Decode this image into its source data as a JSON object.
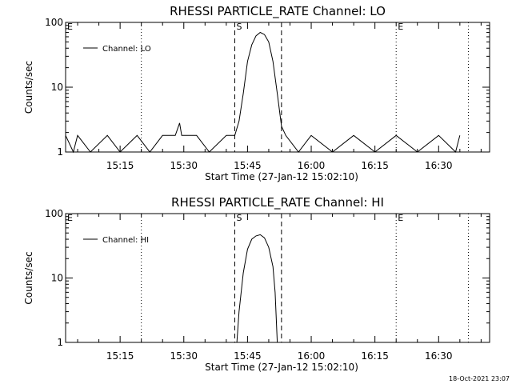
{
  "chart_data": [
    {
      "type": "line",
      "title": "RHESSI PARTICLE_RATE Channel: LO",
      "xlabel": "Start Time (27-Jan-12 15:02:10)",
      "ylabel": "Counts/sec",
      "yscale": "log",
      "ylim": [
        1,
        100
      ],
      "xlim": [
        "15:02:10",
        "16:42:00"
      ],
      "y_tick_labels": [
        "1",
        "10",
        "100"
      ],
      "x_tick_labels": [
        "15:15",
        "15:30",
        "15:45",
        "16:00",
        "16:15",
        "16:30"
      ],
      "legend": {
        "placement": "top-left",
        "entries": [
          "Channel: LO"
        ]
      },
      "markers": [
        {
          "label": "E",
          "time": "15:02:10",
          "style": "dotted"
        },
        {
          "label": "",
          "time": "15:20:00",
          "style": "dotted"
        },
        {
          "label": "S",
          "time": "15:42:00",
          "style": "dashed"
        },
        {
          "label": "",
          "time": "15:53:00",
          "style": "dashed"
        },
        {
          "label": "E",
          "time": "16:20:00",
          "style": "dotted"
        },
        {
          "label": "",
          "time": "16:37:00",
          "style": "dotted"
        }
      ],
      "series": [
        {
          "name": "Channel: LO",
          "x": [
            "15:02:10",
            "15:04:00",
            "15:05:00",
            "15:08:00",
            "15:12:00",
            "15:15:00",
            "15:19:00",
            "15:22:00",
            "15:25:00",
            "15:28:00",
            "15:29:00",
            "15:29:30",
            "15:30:00",
            "15:33:00",
            "15:36:00",
            "15:40:00",
            "15:42:00",
            "15:43:00",
            "15:44:00",
            "15:45:00",
            "15:46:00",
            "15:47:00",
            "15:48:00",
            "15:49:00",
            "15:50:00",
            "15:51:00",
            "15:52:00",
            "15:53:00",
            "15:54:00",
            "15:57:00",
            "16:00:00",
            "16:05:00",
            "16:10:00",
            "16:15:00",
            "16:20:00",
            "16:25:00",
            "16:30:00",
            "16:34:00",
            "16:35:00"
          ],
          "y": [
            1.8,
            1,
            1.8,
            1,
            1.8,
            1,
            1.8,
            1,
            1.8,
            1.8,
            2.8,
            1.8,
            1.8,
            1.8,
            1,
            1.8,
            1.8,
            3,
            8,
            25,
            45,
            62,
            70,
            65,
            50,
            25,
            8,
            2.5,
            1.8,
            1,
            1.8,
            1,
            1.8,
            1,
            1.8,
            1,
            1.8,
            1,
            1.8
          ]
        }
      ]
    },
    {
      "type": "line",
      "title": "RHESSI PARTICLE_RATE Channel: HI",
      "xlabel": "Start Time (27-Jan-12 15:02:10)",
      "ylabel": "Counts/sec",
      "yscale": "log",
      "ylim": [
        1,
        100
      ],
      "xlim": [
        "15:02:10",
        "16:42:00"
      ],
      "y_tick_labels": [
        "1",
        "10",
        "100"
      ],
      "x_tick_labels": [
        "15:15",
        "15:30",
        "15:45",
        "16:00",
        "16:15",
        "16:30"
      ],
      "legend": {
        "placement": "top-left",
        "entries": [
          "Channel: HI"
        ]
      },
      "markers": [
        {
          "label": "E",
          "time": "15:02:10",
          "style": "dotted"
        },
        {
          "label": "",
          "time": "15:20:00",
          "style": "dotted"
        },
        {
          "label": "S",
          "time": "15:42:00",
          "style": "dashed"
        },
        {
          "label": "",
          "time": "15:53:00",
          "style": "dashed"
        },
        {
          "label": "E",
          "time": "16:20:00",
          "style": "dotted"
        },
        {
          "label": "",
          "time": "16:37:00",
          "style": "dotted"
        }
      ],
      "series": [
        {
          "name": "Channel: HI",
          "x": [
            "15:42:30",
            "15:43:00",
            "15:44:00",
            "15:45:00",
            "15:46:00",
            "15:47:00",
            "15:48:00",
            "15:49:00",
            "15:50:00",
            "15:51:00",
            "15:51:30",
            "15:52:00"
          ],
          "y": [
            1,
            3,
            12,
            28,
            40,
            45,
            47,
            42,
            30,
            15,
            6,
            1
          ]
        }
      ]
    }
  ],
  "footer": {
    "timestamp": "18-Oct-2021 23:07"
  }
}
